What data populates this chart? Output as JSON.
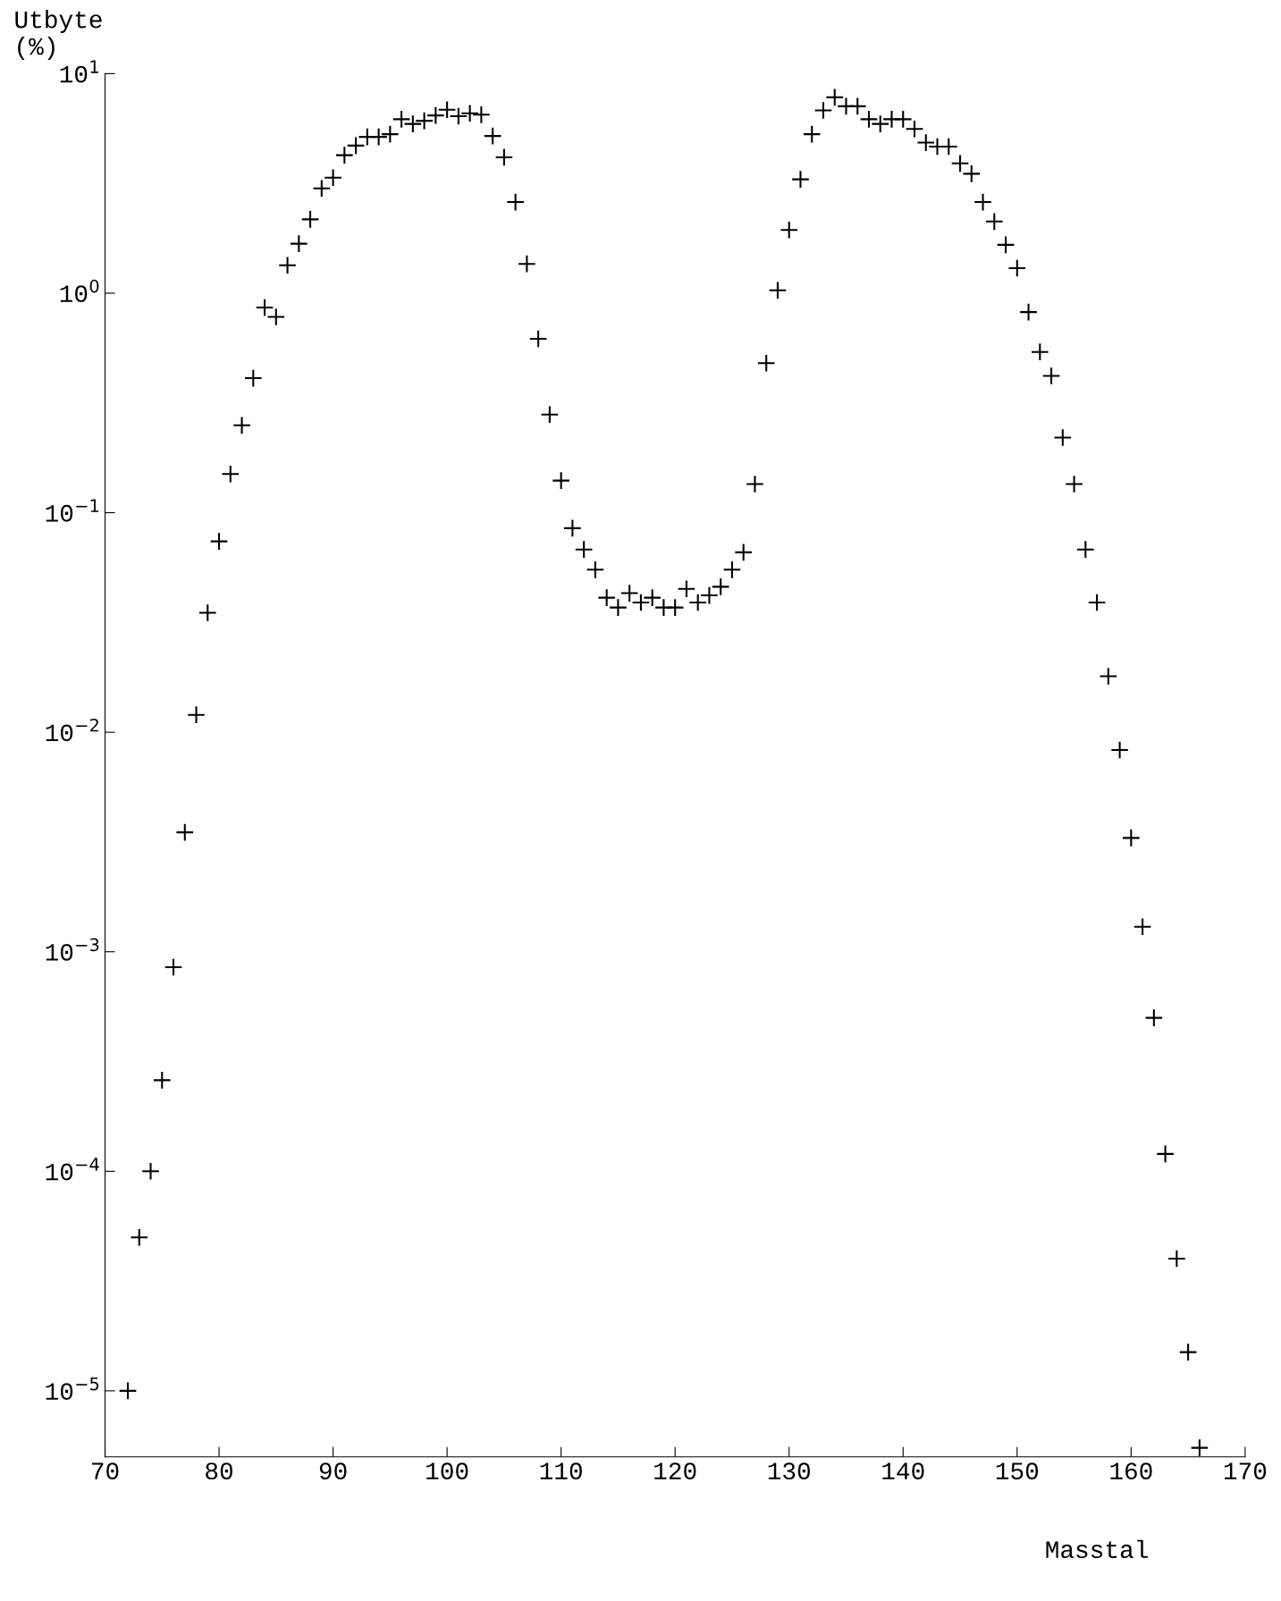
{
  "chart_data": {
    "type": "scatter",
    "xlabel": "Masstal",
    "ylabel": "Utbyte\n(%)",
    "x": [
      72,
      73,
      74,
      75,
      76,
      77,
      78,
      79,
      80,
      81,
      82,
      83,
      84,
      85,
      86,
      87,
      88,
      89,
      90,
      91,
      92,
      93,
      94,
      95,
      96,
      97,
      98,
      99,
      100,
      101,
      102,
      103,
      104,
      105,
      106,
      107,
      108,
      109,
      110,
      111,
      112,
      113,
      114,
      115,
      116,
      117,
      118,
      119,
      120,
      121,
      122,
      123,
      124,
      125,
      126,
      127,
      128,
      129,
      130,
      131,
      132,
      133,
      134,
      135,
      136,
      137,
      138,
      139,
      140,
      141,
      142,
      143,
      144,
      145,
      146,
      147,
      148,
      149,
      150,
      151,
      152,
      153,
      154,
      155,
      156,
      157,
      158,
      159,
      160,
      161,
      162,
      163,
      164,
      165,
      166
    ],
    "values": [
      1e-05,
      5e-05,
      0.0001,
      0.00026,
      0.00085,
      0.0035,
      0.012,
      0.035,
      0.074,
      0.15,
      0.25,
      0.41,
      0.86,
      0.78,
      1.34,
      1.68,
      2.17,
      3.0,
      3.36,
      4.25,
      4.7,
      5.15,
      5.15,
      5.3,
      6.2,
      5.9,
      6.1,
      6.45,
      6.85,
      6.4,
      6.6,
      6.5,
      5.2,
      4.16,
      2.6,
      1.36,
      0.62,
      0.28,
      0.14,
      0.085,
      0.068,
      0.055,
      0.041,
      0.037,
      0.043,
      0.039,
      0.041,
      0.037,
      0.037,
      0.045,
      0.039,
      0.042,
      0.046,
      0.055,
      0.066,
      0.135,
      0.48,
      1.03,
      1.94,
      3.3,
      5.3,
      6.8,
      7.8,
      7.1,
      7.1,
      6.2,
      5.9,
      6.2,
      6.2,
      5.6,
      4.85,
      4.65,
      4.65,
      3.9,
      3.5,
      2.6,
      2.12,
      1.66,
      1.3,
      0.82,
      0.54,
      0.42,
      0.22,
      0.135,
      0.068,
      0.039,
      0.018,
      0.0083,
      0.0033,
      0.0013,
      0.0005,
      0.00012,
      4e-05,
      1.5e-05,
      5.5e-06
    ],
    "color": "#000000",
    "marker": "cross",
    "log": "y",
    "grid": false,
    "xlim": [
      70,
      170
    ],
    "xticks": [
      70,
      80,
      90,
      100,
      110,
      120,
      130,
      140,
      150,
      160,
      170
    ],
    "ylim": [
      5e-06,
      10
    ],
    "yticks": [
      {
        "value": 1e-05,
        "label": "10$^{−5}$"
      },
      {
        "value": 0.0001,
        "label": "10$^{−4}$"
      },
      {
        "value": 0.001,
        "label": "10$^{−3}$"
      },
      {
        "value": 0.01,
        "label": "10$^{−2}$"
      },
      {
        "value": 0.1,
        "label": "10$^{−1}$"
      },
      {
        "value": 1,
        "label": "10$^{0}$"
      },
      {
        "value": 10,
        "label": "10$^{1}$"
      }
    ]
  }
}
